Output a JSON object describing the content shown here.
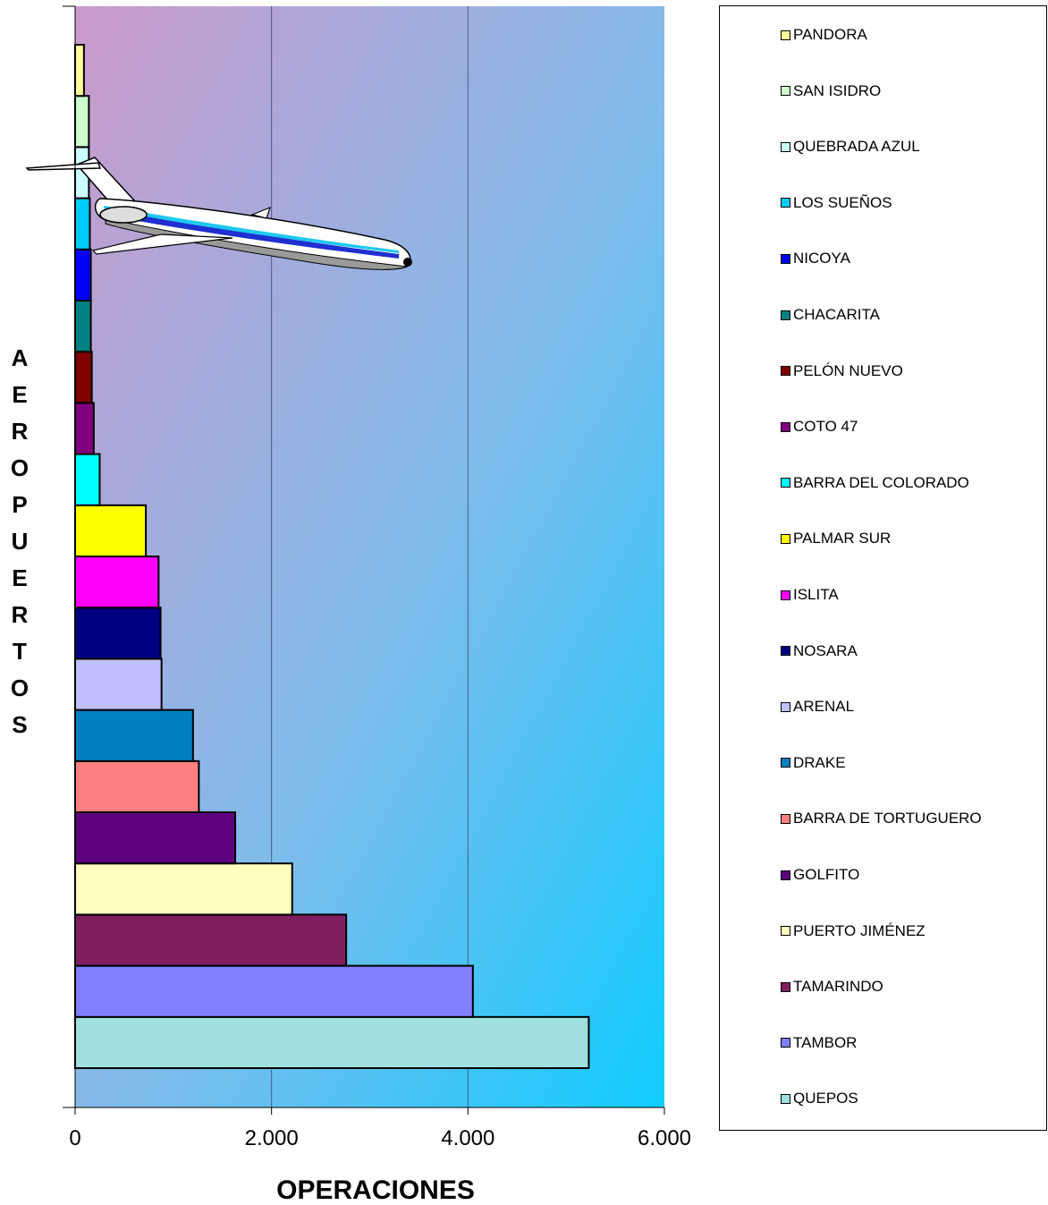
{
  "chart_data": {
    "type": "bar",
    "orientation": "horizontal",
    "xlabel": "OPERACIONES",
    "ylabel": "AEROPUERTOS",
    "xlim": [
      0,
      6000
    ],
    "x_ticks": [
      "0",
      "2.000",
      "4.000",
      "6.000"
    ],
    "grid": true,
    "legend_position": "right",
    "categories": [
      "QUEPOS",
      "TAMBOR",
      "TAMARINDO",
      "PUERTO JIMÉNEZ",
      "GOLFITO",
      "BARRA DE TORTUGUERO",
      "DRAKE",
      "ARENAL",
      "NOSARA",
      "ISLITA",
      "PALMAR SUR",
      "BARRA DEL COLORADO",
      "COTO 47",
      "PELÓN NUEVO",
      "CHACARITA",
      "NICOYA",
      "LOS SUEÑOS",
      "QUEBRADA AZUL",
      "SAN ISIDRO",
      "PANDORA"
    ],
    "values": [
      5230,
      4050,
      2760,
      2210,
      1630,
      1260,
      1200,
      880,
      870,
      850,
      720,
      250,
      190,
      170,
      160,
      160,
      150,
      140,
      140,
      90
    ],
    "colors": [
      "#A0E0E0",
      "#8080FF",
      "#7F1F5F",
      "#FFFFC0",
      "#5F007F",
      "#FF8080",
      "#0080C0",
      "#C0C0FF",
      "#000080",
      "#FF00FF",
      "#FFFF00",
      "#00FFFF",
      "#800080",
      "#800000",
      "#008080",
      "#0000FF",
      "#00CCFF",
      "#CCFFFF",
      "#CCFFCC",
      "#FFFF99"
    ]
  },
  "decoration": {
    "illustration": "airplane-clipart"
  }
}
